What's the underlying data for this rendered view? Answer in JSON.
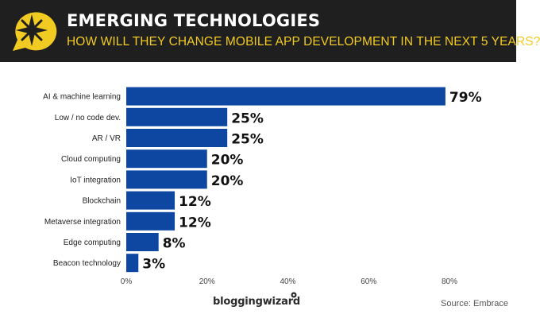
{
  "header": {
    "title": "EMERGING TECHNOLOGIES",
    "subtitle": "HOW WILL THEY CHANGE MOBILE APP DEVELOPMENT IN THE NEXT 5 YEARS?",
    "badge_icon": "star-speech-bubble-icon"
  },
  "colors": {
    "header_bg": "#1f1f1f",
    "accent": "#f2cb22",
    "bar": "#0d47a1",
    "label_text": "#222222",
    "value_text": "#111111"
  },
  "chart_data": {
    "type": "bar",
    "orientation": "horizontal",
    "categories": [
      "AI & machine learning",
      "Low / no code dev.",
      "AR / VR",
      "Cloud computing",
      "IoT integration",
      "Blockchain",
      "Metaverse integration",
      "Edge computing",
      "Beacon technology"
    ],
    "values": [
      79,
      25,
      25,
      20,
      20,
      12,
      12,
      8,
      3
    ],
    "value_labels": [
      "79%",
      "25%",
      "25%",
      "20%",
      "20%",
      "12%",
      "12%",
      "8%",
      "3%"
    ],
    "xlim": [
      0,
      80
    ],
    "xticks": [
      0,
      20,
      40,
      60,
      80
    ],
    "xtick_labels": [
      "0%",
      "20%",
      "40%",
      "60%",
      "80%"
    ],
    "unit": "%",
    "title": "EMERGING TECHNOLOGIES",
    "xlabel": "",
    "ylabel": "",
    "grid": false
  },
  "footer": {
    "brand": "bloggingwizard",
    "source": "Source: Embrace"
  }
}
